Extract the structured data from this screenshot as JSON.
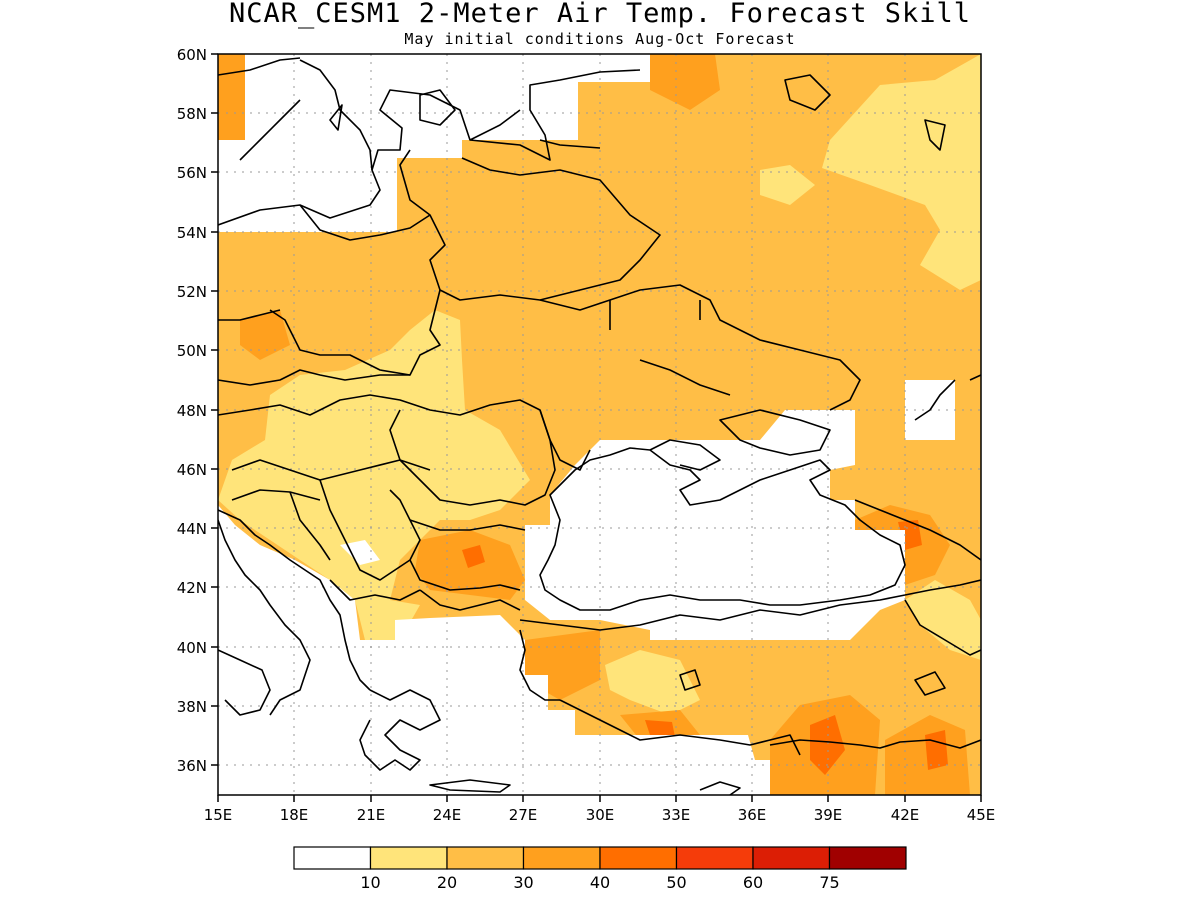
{
  "title": "NCAR_CESM1 2-Meter Air Temp. Forecast Skill",
  "subtitle": "May initial conditions  Aug-Oct Forecast",
  "map": {
    "lon_range": [
      15,
      45
    ],
    "lat_range": [
      35,
      60
    ],
    "grid": true,
    "x_ticks": [
      "15E",
      "18E",
      "21E",
      "24E",
      "27E",
      "30E",
      "33E",
      "36E",
      "39E",
      "42E",
      "45E"
    ],
    "y_ticks": [
      "36N",
      "38N",
      "40N",
      "42N",
      "44N",
      "46N",
      "48N",
      "50N",
      "52N",
      "54N",
      "56N",
      "58N",
      "60N"
    ]
  },
  "colorbar": {
    "colors": [
      "#ffffff",
      "#ffe47a",
      "#ffbe46",
      "#ffa01e",
      "#ff6e00",
      "#f53c0a",
      "#dc1e05",
      "#a00000"
    ],
    "labels": [
      "10",
      "20",
      "30",
      "40",
      "50",
      "60",
      "75"
    ]
  },
  "colors": {
    "none": "#ffffff",
    "c10_20": "#ffe47a",
    "c20_30": "#ffbe46",
    "c30_40": "#ffa01e",
    "c40_50": "#ff6e00",
    "c50_60": "#f53c0a"
  }
}
